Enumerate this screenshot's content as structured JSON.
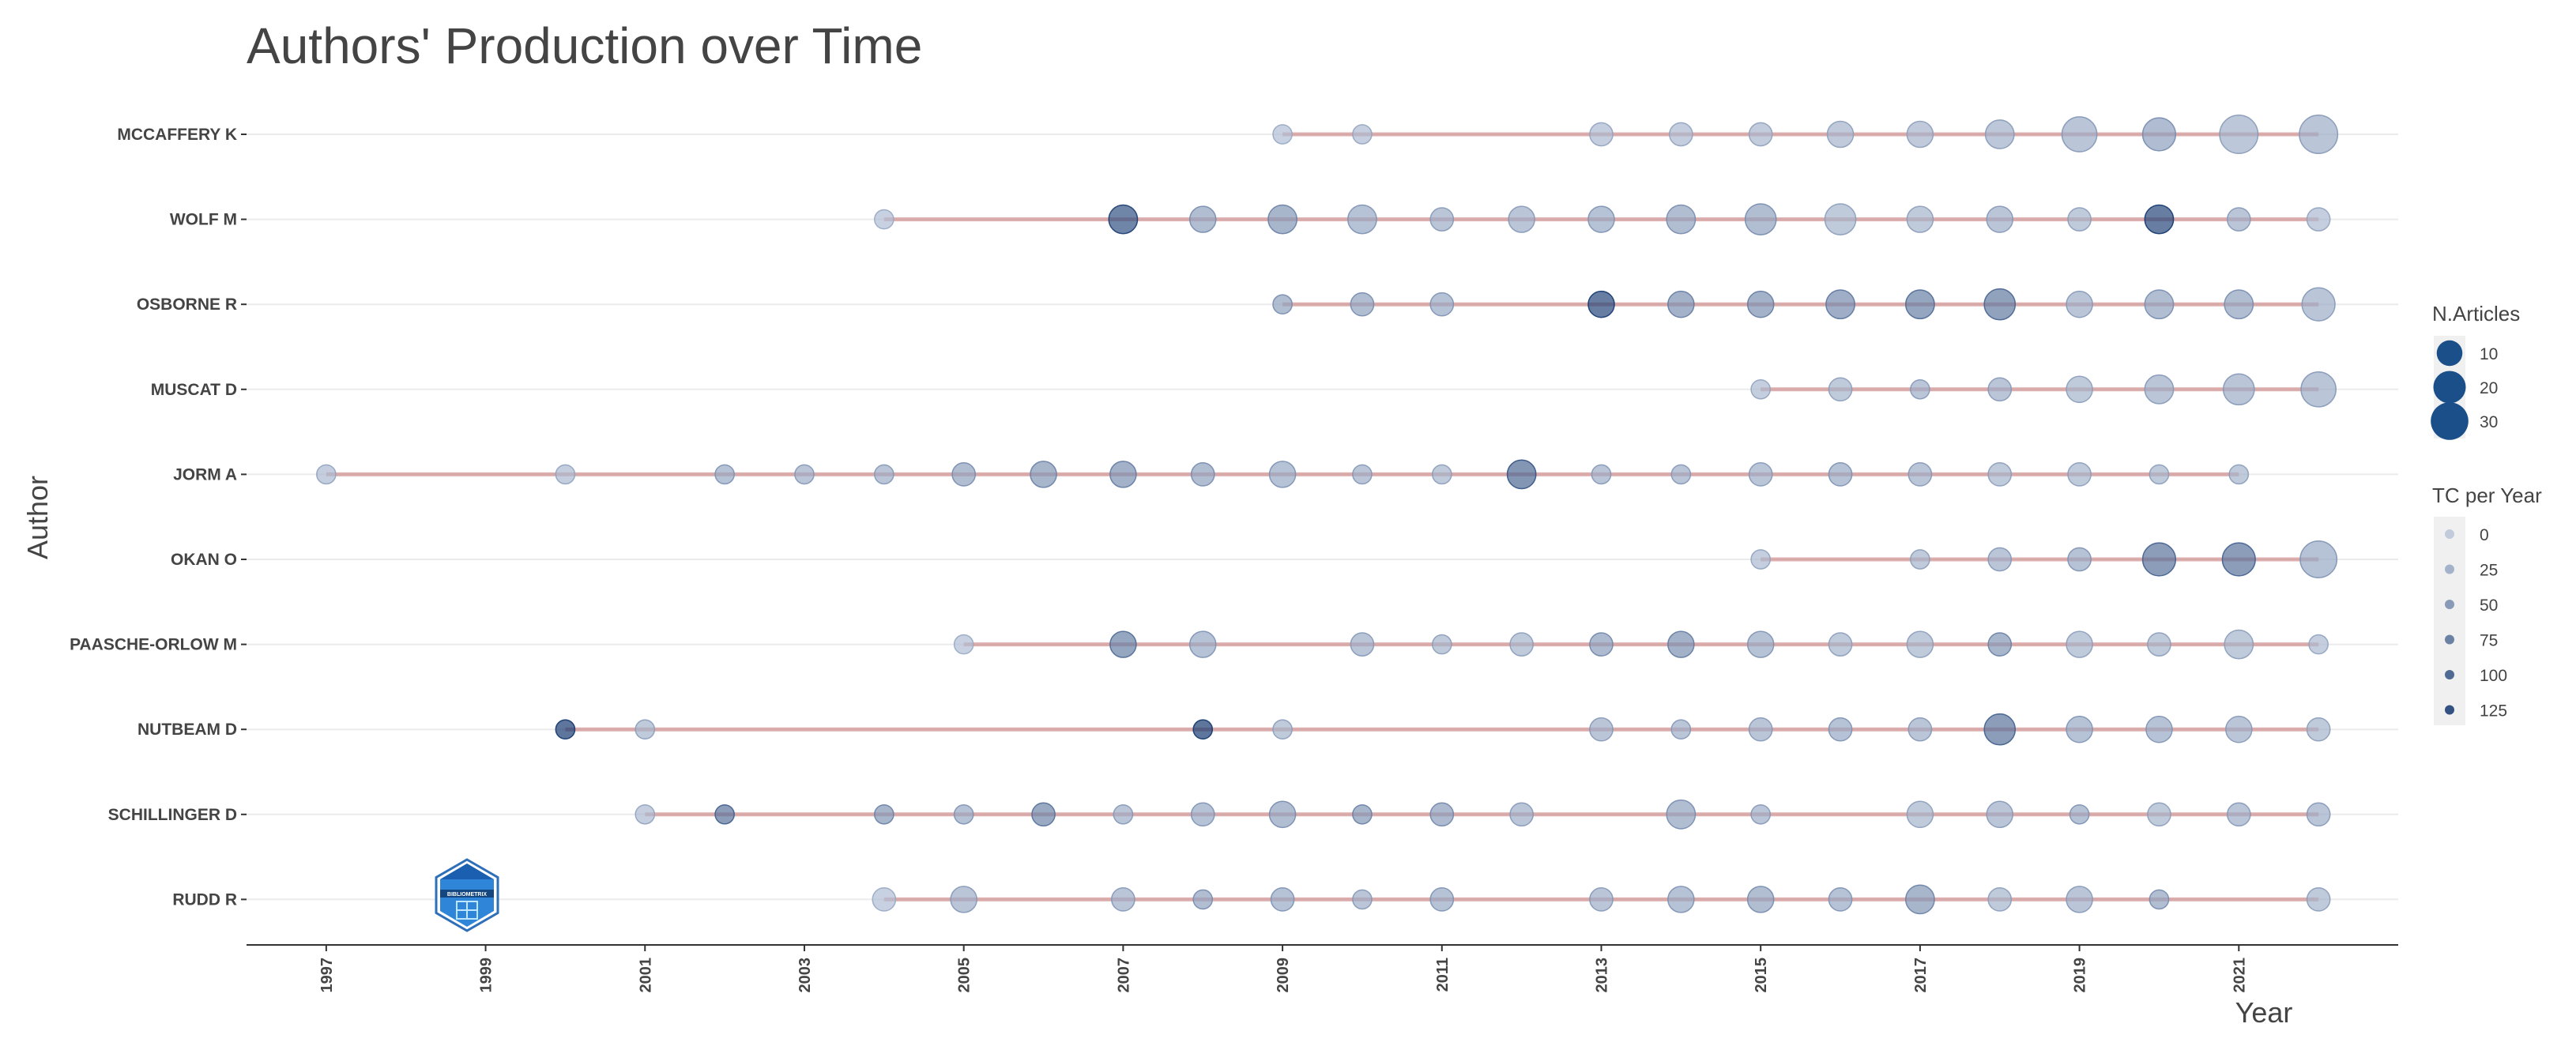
{
  "chart_data": {
    "type": "scatter",
    "title": "Authors' Production over Time",
    "xlabel": "Year",
    "ylabel": "Author",
    "x_ticks": [
      "1997",
      "1999",
      "2001",
      "2003",
      "2005",
      "2007",
      "2009",
      "2011",
      "2013",
      "2015",
      "2017",
      "2019",
      "2021"
    ],
    "xlim": [
      1996,
      2023
    ],
    "grid": "horizontal",
    "legend_placement": "right",
    "colors": {
      "point": "#1b4f8a",
      "line": "#c97b7b",
      "axis": "#333333",
      "grid": "#ebebeb"
    },
    "legend_size": {
      "title": "N.Articles",
      "values": [
        10,
        20,
        30
      ]
    },
    "legend_color": {
      "title": "TC per Year",
      "values": [
        0,
        25,
        50,
        75,
        100,
        125
      ]
    },
    "logo_text": "BIBLIOMETRIX",
    "authors": [
      {
        "name": "MCCAFFERY K",
        "start": 2009,
        "end": 2022,
        "points": [
          [
            2009,
            1,
            5
          ],
          [
            2010,
            1,
            8
          ],
          [
            2013,
            2,
            10
          ],
          [
            2014,
            2,
            10
          ],
          [
            2015,
            2,
            12
          ],
          [
            2016,
            3,
            14
          ],
          [
            2017,
            3,
            14
          ],
          [
            2018,
            4,
            18
          ],
          [
            2019,
            7,
            20
          ],
          [
            2020,
            6,
            32
          ],
          [
            2021,
            9,
            18
          ],
          [
            2022,
            9,
            20
          ]
        ]
      },
      {
        "name": "WOLF M",
        "start": 2004,
        "end": 2022,
        "points": [
          [
            2004,
            1,
            5
          ],
          [
            2007,
            4,
            100
          ],
          [
            2008,
            3,
            30
          ],
          [
            2009,
            4,
            40
          ],
          [
            2010,
            4,
            25
          ],
          [
            2011,
            2,
            20
          ],
          [
            2012,
            3,
            20
          ],
          [
            2013,
            3,
            25
          ],
          [
            2014,
            4,
            30
          ],
          [
            2015,
            5,
            30
          ],
          [
            2016,
            5,
            15
          ],
          [
            2017,
            3,
            15
          ],
          [
            2018,
            3,
            20
          ],
          [
            2019,
            2,
            15
          ],
          [
            2020,
            4,
            110
          ],
          [
            2021,
            2,
            20
          ],
          [
            2022,
            2,
            10
          ]
        ]
      },
      {
        "name": "OSBORNE R",
        "start": 2009,
        "end": 2022,
        "points": [
          [
            2009,
            1,
            30
          ],
          [
            2010,
            2,
            30
          ],
          [
            2011,
            2,
            25
          ],
          [
            2013,
            3,
            110
          ],
          [
            2014,
            3,
            45
          ],
          [
            2015,
            3,
            45
          ],
          [
            2016,
            4,
            50
          ],
          [
            2017,
            4,
            60
          ],
          [
            2018,
            5,
            65
          ],
          [
            2019,
            3,
            20
          ],
          [
            2020,
            4,
            30
          ],
          [
            2021,
            4,
            30
          ],
          [
            2022,
            6,
            20
          ]
        ]
      },
      {
        "name": "MUSCAT D",
        "start": 2015,
        "end": 2022,
        "points": [
          [
            2015,
            1,
            10
          ],
          [
            2016,
            2,
            15
          ],
          [
            2017,
            1,
            20
          ],
          [
            2018,
            2,
            20
          ],
          [
            2019,
            3,
            15
          ],
          [
            2020,
            4,
            20
          ],
          [
            2021,
            5,
            20
          ],
          [
            2022,
            7,
            20
          ]
        ]
      },
      {
        "name": "JORM A",
        "start": 1997,
        "end": 2021,
        "points": [
          [
            1997,
            1,
            10
          ],
          [
            2000,
            1,
            10
          ],
          [
            2002,
            1,
            25
          ],
          [
            2003,
            1,
            20
          ],
          [
            2004,
            1,
            20
          ],
          [
            2005,
            2,
            30
          ],
          [
            2006,
            3,
            40
          ],
          [
            2007,
            3,
            45
          ],
          [
            2008,
            2,
            30
          ],
          [
            2009,
            3,
            25
          ],
          [
            2010,
            1,
            20
          ],
          [
            2011,
            1,
            15
          ],
          [
            2012,
            4,
            80
          ],
          [
            2013,
            1,
            20
          ],
          [
            2014,
            1,
            20
          ],
          [
            2015,
            2,
            20
          ],
          [
            2016,
            2,
            25
          ],
          [
            2017,
            2,
            20
          ],
          [
            2018,
            2,
            15
          ],
          [
            2019,
            2,
            15
          ],
          [
            2020,
            1,
            15
          ],
          [
            2021,
            1,
            15
          ]
        ]
      },
      {
        "name": "OKAN O",
        "start": 2015,
        "end": 2022,
        "points": [
          [
            2015,
            1,
            10
          ],
          [
            2017,
            1,
            15
          ],
          [
            2018,
            2,
            20
          ],
          [
            2019,
            2,
            25
          ],
          [
            2020,
            6,
            70
          ],
          [
            2021,
            6,
            70
          ],
          [
            2022,
            8,
            25
          ]
        ]
      },
      {
        "name": "PAASCHE-ORLOW M",
        "start": 2005,
        "end": 2022,
        "points": [
          [
            2005,
            1,
            5
          ],
          [
            2007,
            3,
            60
          ],
          [
            2008,
            3,
            25
          ],
          [
            2010,
            2,
            20
          ],
          [
            2011,
            1,
            15
          ],
          [
            2012,
            2,
            15
          ],
          [
            2013,
            2,
            35
          ],
          [
            2014,
            3,
            45
          ],
          [
            2015,
            3,
            25
          ],
          [
            2016,
            2,
            15
          ],
          [
            2017,
            3,
            15
          ],
          [
            2018,
            2,
            40
          ],
          [
            2019,
            3,
            15
          ],
          [
            2020,
            2,
            15
          ],
          [
            2021,
            4,
            15
          ],
          [
            2022,
            1,
            10
          ]
        ]
      },
      {
        "name": "NUTBEAM D",
        "start": 2000,
        "end": 2022,
        "points": [
          [
            2000,
            1,
            120
          ],
          [
            2001,
            1,
            15
          ],
          [
            2008,
            1,
            120
          ],
          [
            2009,
            1,
            15
          ],
          [
            2013,
            2,
            20
          ],
          [
            2014,
            1,
            20
          ],
          [
            2015,
            2,
            20
          ],
          [
            2016,
            2,
            25
          ],
          [
            2017,
            2,
            20
          ],
          [
            2018,
            5,
            70
          ],
          [
            2019,
            3,
            25
          ],
          [
            2020,
            3,
            25
          ],
          [
            2021,
            3,
            20
          ],
          [
            2022,
            2,
            15
          ]
        ]
      },
      {
        "name": "SCHILLINGER D",
        "start": 2001,
        "end": 2022,
        "points": [
          [
            2001,
            1,
            10
          ],
          [
            2002,
            1,
            70
          ],
          [
            2004,
            1,
            40
          ],
          [
            2005,
            1,
            25
          ],
          [
            2006,
            2,
            55
          ],
          [
            2007,
            1,
            20
          ],
          [
            2008,
            2,
            25
          ],
          [
            2009,
            3,
            30
          ],
          [
            2010,
            1,
            40
          ],
          [
            2011,
            2,
            35
          ],
          [
            2012,
            2,
            20
          ],
          [
            2014,
            4,
            30
          ],
          [
            2015,
            1,
            20
          ],
          [
            2017,
            3,
            15
          ],
          [
            2018,
            3,
            20
          ],
          [
            2019,
            1,
            25
          ],
          [
            2020,
            2,
            15
          ],
          [
            2021,
            2,
            20
          ],
          [
            2022,
            2,
            20
          ]
        ]
      },
      {
        "name": "RUDD R",
        "start": 2004,
        "end": 2022,
        "points": [
          [
            2004,
            2,
            5
          ],
          [
            2005,
            3,
            20
          ],
          [
            2007,
            2,
            20
          ],
          [
            2008,
            1,
            30
          ],
          [
            2009,
            2,
            25
          ],
          [
            2010,
            1,
            20
          ],
          [
            2011,
            2,
            25
          ],
          [
            2013,
            2,
            20
          ],
          [
            2014,
            3,
            25
          ],
          [
            2015,
            3,
            30
          ],
          [
            2016,
            2,
            25
          ],
          [
            2017,
            4,
            40
          ],
          [
            2018,
            2,
            15
          ],
          [
            2019,
            3,
            20
          ],
          [
            2020,
            1,
            30
          ],
          [
            2022,
            2,
            15
          ]
        ]
      }
    ]
  }
}
